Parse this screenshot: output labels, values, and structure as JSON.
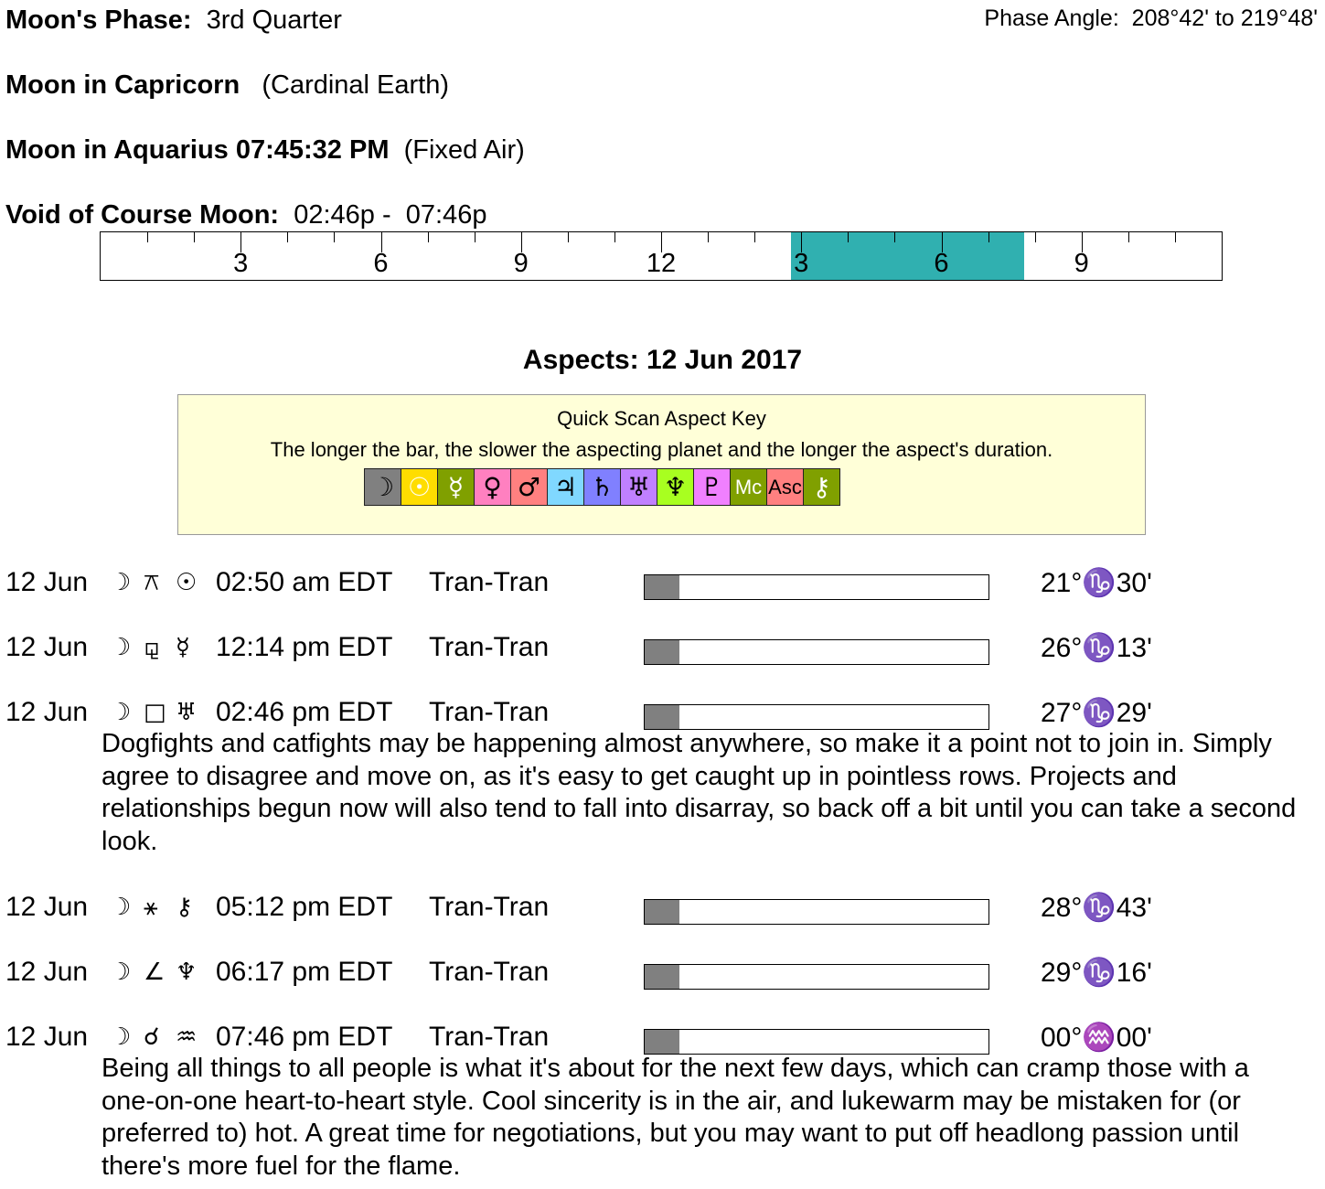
{
  "header": {
    "phase_label": "Moon's Phase:",
    "phase_value": "3rd Quarter",
    "phase_angle_label": "Phase Angle:",
    "phase_angle_value": "208°42' to 219°48'",
    "moon_sign1_label": "Moon in Capricorn",
    "moon_sign1_element": "(Cardinal Earth)",
    "moon_sign2_label": "Moon in Aquarius 07:45:32 PM",
    "moon_sign2_element": "(Fixed Air)",
    "voc_label": "Void of Course Moon:",
    "voc_value": "02:46p -  07:46p"
  },
  "timeline": {
    "hour_labels": [
      "3",
      "6",
      "9",
      "12",
      "3",
      "6",
      "9"
    ],
    "voc_start_hour": 14.77,
    "voc_end_hour": 19.77,
    "fill_color": "#30b0b0"
  },
  "aspects_title": "Aspects: 12 Jun 2017",
  "key": {
    "title": "Quick Scan Aspect Key",
    "subtitle": "The longer the bar, the slower the aspecting planet and the longer the aspect's duration.",
    "glyphs": [
      {
        "name": "moon",
        "symbol": "☽",
        "bg": "#808080",
        "fg": "#000"
      },
      {
        "name": "sun",
        "symbol": "☉",
        "bg": "#ffdd00",
        "fg": "#fff"
      },
      {
        "name": "mercury",
        "symbol": "☿",
        "bg": "#80a000",
        "fg": "#fff"
      },
      {
        "name": "venus",
        "symbol": "♀",
        "bg": "#ff80c0",
        "fg": "#000"
      },
      {
        "name": "mars",
        "symbol": "♂",
        "bg": "#ff8080",
        "fg": "#000"
      },
      {
        "name": "jupiter",
        "symbol": "♃",
        "bg": "#80d8ff",
        "fg": "#000"
      },
      {
        "name": "saturn",
        "symbol": "♄",
        "bg": "#8080ff",
        "fg": "#000"
      },
      {
        "name": "uranus",
        "symbol": "♅",
        "bg": "#c080ff",
        "fg": "#000"
      },
      {
        "name": "neptune",
        "symbol": "♆",
        "bg": "#a8ff20",
        "fg": "#000"
      },
      {
        "name": "pluto",
        "symbol": "♇",
        "bg": "#f080ff",
        "fg": "#000"
      },
      {
        "name": "midheaven",
        "symbol": "Mc",
        "bg": "#80a000",
        "fg": "#fff"
      },
      {
        "name": "ascendant",
        "symbol": "Asc",
        "bg": "#ff8080",
        "fg": "#000"
      },
      {
        "name": "chiron",
        "symbol": "⚷",
        "bg": "#80a000",
        "fg": "#fff"
      }
    ]
  },
  "aspects": [
    {
      "date": "12 Jun",
      "p1": "☽",
      "aspect": "⚻",
      "p2": "☉",
      "time": "02:50 am EDT",
      "type": "Tran-Tran",
      "bar": 0.1,
      "position": "21°♑30'",
      "text": ""
    },
    {
      "date": "12 Jun",
      "p1": "☽",
      "aspect": "⚼",
      "p2": "☿",
      "time": "12:14 pm EDT",
      "type": "Tran-Tran",
      "bar": 0.1,
      "position": "26°♑13'",
      "text": ""
    },
    {
      "date": "12 Jun",
      "p1": "☽",
      "aspect": "□",
      "p2": "♅",
      "time": "02:46 pm EDT",
      "type": "Tran-Tran",
      "bar": 0.1,
      "position": "27°♑29'",
      "text": "Dogfights and catfights may be happening almost anywhere, so make it a point not to join in. Simply agree to disagree and move on, as it's easy to get caught up in pointless rows. Projects and relationships begun now will also tend to fall into disarray, so back off a bit until you can take a second look."
    },
    {
      "date": "12 Jun",
      "p1": "☽",
      "aspect": "⚹",
      "p2": "⚷",
      "time": "05:12 pm EDT",
      "type": "Tran-Tran",
      "bar": 0.1,
      "position": "28°♑43'",
      "text": ""
    },
    {
      "date": "12 Jun",
      "p1": "☽",
      "aspect": "∠",
      "p2": "♆",
      "time": "06:17 pm EDT",
      "type": "Tran-Tran",
      "bar": 0.1,
      "position": "29°♑16'",
      "text": ""
    },
    {
      "date": "12 Jun",
      "p1": "☽",
      "aspect": "☌",
      "p2": "♒",
      "time": "07:46 pm EDT",
      "type": "Tran-Tran",
      "bar": 0.1,
      "position": "00°♒00'",
      "text": "Being all things to all people is what it's about for the next few days, which can cramp those with a one-on-one heart-to-heart style. Cool sincerity is in the air, and lukewarm may be mistaken for (or preferred to) hot. A great time for negotiations, but you may want to put off headlong passion until there's more fuel for the flame."
    }
  ]
}
